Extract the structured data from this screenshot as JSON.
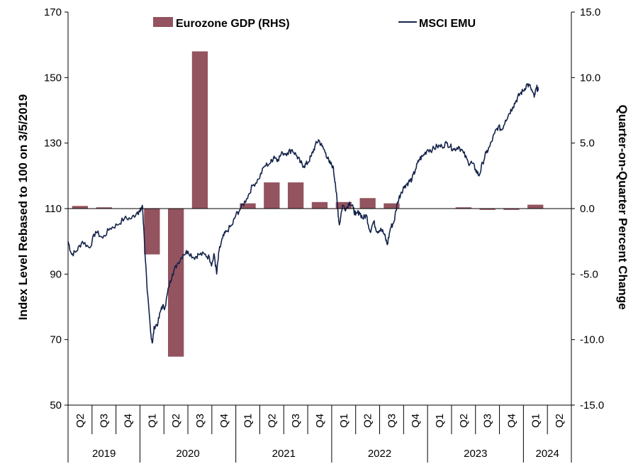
{
  "colors": {
    "bar": "#93535f",
    "line": "#14234a",
    "axis": "#000000"
  },
  "chart_data": {
    "type": "bar+line",
    "left_axis": {
      "title": "Index Level Rebased to 100 on 3/5/2019",
      "range": [
        50,
        170
      ],
      "ticks": [
        "50",
        "70",
        "90",
        "110",
        "130",
        "150",
        "170"
      ]
    },
    "right_axis": {
      "title": "Quarter-on-Quarter Percent Change",
      "range": [
        -15,
        15
      ],
      "ticks": [
        "-15.0",
        "-10.0",
        "-5.0",
        "0.0",
        "5.0",
        "10.0",
        "15.0"
      ]
    },
    "legend": {
      "bar_label": "Eurozone GDP (RHS)",
      "line_label": "MSCI EMU",
      "placement": "top-center"
    },
    "quarter_labels": [
      "Q2",
      "Q3",
      "Q4",
      "Q1",
      "Q2",
      "Q3",
      "Q4",
      "Q1",
      "Q2",
      "Q3",
      "Q4",
      "Q1",
      "Q2",
      "Q3",
      "Q4",
      "Q1",
      "Q2",
      "Q3",
      "Q4",
      "Q1",
      "Q2"
    ],
    "years": [
      {
        "label": "2019",
        "quarters": 3
      },
      {
        "label": "2020",
        "quarters": 4
      },
      {
        "label": "2021",
        "quarters": 4
      },
      {
        "label": "2022",
        "quarters": 4
      },
      {
        "label": "2023",
        "quarters": 4
      },
      {
        "label": "2024",
        "quarters": 2
      }
    ],
    "gdp_series": {
      "name": "Eurozone GDP (RHS)",
      "values": [
        0.2,
        0.1,
        0.0,
        -3.5,
        -11.3,
        12.0,
        0.0,
        0.4,
        2.0,
        2.0,
        0.5,
        0.5,
        0.8,
        0.4,
        0.0,
        0.0,
        0.1,
        -0.1,
        -0.1,
        0.3,
        null
      ]
    },
    "msci_series": {
      "name": "MSCI EMU",
      "points": [
        [
          0.0,
          100
        ],
        [
          0.15,
          96
        ],
        [
          0.35,
          97
        ],
        [
          0.6,
          100
        ],
        [
          0.9,
          98
        ],
        [
          1.15,
          103
        ],
        [
          1.45,
          101
        ],
        [
          1.75,
          104
        ],
        [
          2.05,
          105
        ],
        [
          2.35,
          107
        ],
        [
          2.65,
          107
        ],
        [
          2.9,
          109
        ],
        [
          3.0,
          109
        ],
        [
          3.1,
          111
        ],
        [
          3.15,
          105
        ],
        [
          3.3,
          85
        ],
        [
          3.45,
          72
        ],
        [
          3.52,
          69
        ],
        [
          3.6,
          74
        ],
        [
          3.75,
          75
        ],
        [
          3.9,
          80
        ],
        [
          4.05,
          80
        ],
        [
          4.2,
          86
        ],
        [
          4.35,
          90
        ],
        [
          4.55,
          93
        ],
        [
          4.8,
          96
        ],
        [
          5.0,
          97
        ],
        [
          5.25,
          95
        ],
        [
          5.45,
          96
        ],
        [
          5.7,
          96
        ],
        [
          5.9,
          95
        ],
        [
          6.0,
          93
        ],
        [
          6.1,
          96
        ],
        [
          6.2,
          90
        ],
        [
          6.3,
          97
        ],
        [
          6.45,
          101
        ],
        [
          6.6,
          103
        ],
        [
          6.85,
          105
        ],
        [
          7.0,
          108
        ],
        [
          7.2,
          110
        ],
        [
          7.45,
          113
        ],
        [
          7.7,
          117
        ],
        [
          7.95,
          119
        ],
        [
          8.2,
          123
        ],
        [
          8.45,
          124
        ],
        [
          8.6,
          126
        ],
        [
          8.75,
          125
        ],
        [
          8.95,
          127
        ],
        [
          9.15,
          127
        ],
        [
          9.35,
          128
        ],
        [
          9.55,
          126
        ],
        [
          9.7,
          124
        ],
        [
          9.85,
          123
        ],
        [
          10.0,
          124
        ],
        [
          10.15,
          126
        ],
        [
          10.3,
          129
        ],
        [
          10.45,
          131
        ],
        [
          10.6,
          129
        ],
        [
          10.75,
          127
        ],
        [
          10.9,
          124
        ],
        [
          11.05,
          123
        ],
        [
          11.15,
          118
        ],
        [
          11.25,
          110
        ],
        [
          11.32,
          105
        ],
        [
          11.45,
          111
        ],
        [
          11.6,
          110
        ],
        [
          11.75,
          112
        ],
        [
          11.9,
          110
        ],
        [
          12.0,
          108
        ],
        [
          12.15,
          109
        ],
        [
          12.3,
          107
        ],
        [
          12.45,
          108
        ],
        [
          12.6,
          103
        ],
        [
          12.75,
          106
        ],
        [
          12.9,
          103
        ],
        [
          13.05,
          104
        ],
        [
          13.2,
          102
        ],
        [
          13.32,
          99
        ],
        [
          13.45,
          104
        ],
        [
          13.6,
          106
        ],
        [
          13.75,
          112
        ],
        [
          13.9,
          115
        ],
        [
          14.05,
          117
        ],
        [
          14.2,
          118
        ],
        [
          14.35,
          119
        ],
        [
          14.5,
          122
        ],
        [
          14.65,
          125
        ],
        [
          14.8,
          126
        ],
        [
          15.0,
          128
        ],
        [
          15.2,
          128
        ],
        [
          15.4,
          129
        ],
        [
          15.6,
          129
        ],
        [
          15.8,
          130
        ],
        [
          15.95,
          129
        ],
        [
          16.1,
          128
        ],
        [
          16.3,
          129
        ],
        [
          16.5,
          127
        ],
        [
          16.7,
          124
        ],
        [
          16.85,
          124
        ],
        [
          17.0,
          122
        ],
        [
          17.15,
          120
        ],
        [
          17.3,
          124
        ],
        [
          17.45,
          127
        ],
        [
          17.6,
          129
        ],
        [
          17.8,
          133
        ],
        [
          17.95,
          135
        ],
        [
          18.1,
          134
        ],
        [
          18.25,
          137
        ],
        [
          18.4,
          139
        ],
        [
          18.55,
          141
        ],
        [
          18.7,
          143
        ],
        [
          18.85,
          145
        ],
        [
          19.0,
          146
        ],
        [
          19.15,
          148
        ],
        [
          19.3,
          147
        ],
        [
          19.45,
          144
        ],
        [
          19.55,
          147
        ],
        [
          19.62,
          146
        ]
      ]
    }
  }
}
